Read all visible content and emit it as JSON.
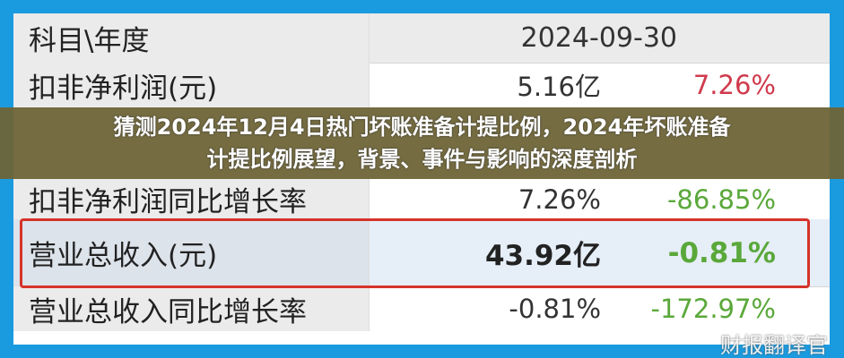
{
  "table": {
    "header": {
      "label": "科目\\年度",
      "date": "2024-09-30"
    },
    "rows": [
      {
        "label": "扣非净利润(元)",
        "value": "5.16亿",
        "change": "7.26%"
      },
      {
        "label": "扣非净利润同比增长率",
        "value": "7.26%",
        "change": "-86.85%"
      },
      {
        "label": "营业总收入(元)",
        "value": "43.92亿",
        "change": "-0.81%"
      },
      {
        "label": "营业总收入同比增长率",
        "value": "-0.81%",
        "change": "-172.97%"
      }
    ]
  },
  "overlay": {
    "line1": "猜测2024年12月4日热门坏账准备计提比例，2024年坏账准备",
    "line2": "计提比例展望，背景、事件与影响的深度剖析"
  },
  "watermark": "财报翻译官",
  "colors": {
    "frame": "#1a9be0",
    "positive": "#d03a4d",
    "negative": "#5aa83a",
    "highlight": "#d6332a"
  }
}
